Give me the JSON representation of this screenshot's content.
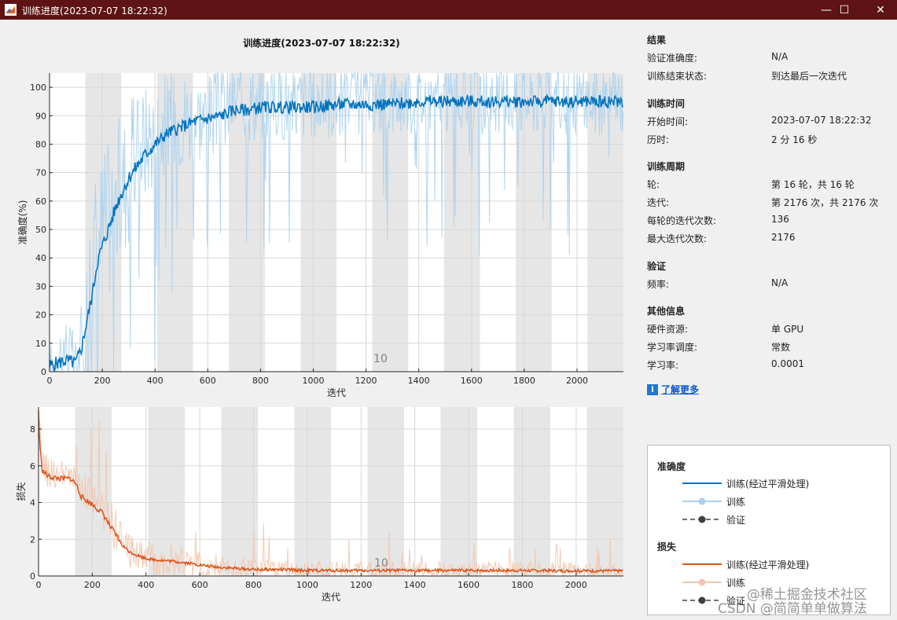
{
  "window": {
    "title": "训练进度(2023-07-07 18:22:32)",
    "app_icon": "matlab-icon",
    "controls": {
      "minimize": "—",
      "maximize": "☐",
      "close": "✕"
    }
  },
  "colors": {
    "titlebar": "#5e1414",
    "accuracy_smoothed": "#0072bd",
    "accuracy_raw": "#abd1ee",
    "loss_smoothed": "#d95319",
    "loss_raw": "#f3c5ad",
    "epoch_shade": "#e6e6e6",
    "validation": "#404040"
  },
  "chart_data": [
    {
      "type": "line",
      "title": "训练进度(2023-07-07 18:22:32)",
      "xlabel": "迭代",
      "ylabel": "准确度(%)",
      "xlim": [
        0,
        2176
      ],
      "ylim": [
        0,
        105
      ],
      "xticks": [
        0,
        200,
        400,
        600,
        800,
        1000,
        1200,
        1400,
        1600,
        1800,
        2000
      ],
      "yticks": [
        0,
        10,
        20,
        30,
        40,
        50,
        60,
        70,
        80,
        90,
        100
      ],
      "grid": true,
      "epoch_label": "10",
      "epoch_label_x": 1255,
      "iterations_per_epoch": 136,
      "series": [
        {
          "name": "训练(经过平滑处理)",
          "style": "smoothed",
          "x": [
            0,
            60,
            100,
            120,
            140,
            160,
            180,
            200,
            230,
            260,
            300,
            330,
            360,
            400,
            450,
            500,
            550,
            600,
            650,
            700,
            750,
            800,
            850,
            900,
            950,
            1000,
            1100,
            1200,
            1300,
            1400,
            1500,
            1600,
            1700,
            1800,
            1900,
            2000,
            2100,
            2176
          ],
          "y": [
            2,
            4,
            3,
            8,
            17,
            26,
            38,
            44,
            52,
            60,
            68,
            72,
            76,
            80,
            84,
            86,
            88,
            89,
            90,
            92,
            92,
            93,
            93,
            93,
            93,
            93,
            94,
            94,
            94,
            95,
            95,
            95,
            95,
            95,
            95,
            95,
            95,
            95
          ]
        },
        {
          "name": "训练",
          "style": "raw",
          "x": [
            0,
            60,
            100,
            130,
            160,
            200,
            250,
            300,
            350,
            400,
            500,
            600,
            700,
            800,
            900,
            1000,
            1200,
            1400,
            1600,
            1800,
            2000,
            2176
          ],
          "y": [
            0,
            10,
            2,
            10,
            40,
            50,
            60,
            70,
            80,
            85,
            90,
            90,
            95,
            95,
            95,
            95,
            96,
            96,
            96,
            96,
            96,
            96
          ],
          "spread": [
            10,
            12,
            10,
            20,
            30,
            30,
            28,
            25,
            22,
            20,
            18,
            16,
            15,
            14,
            14,
            14,
            13,
            13,
            13,
            13,
            13,
            13
          ]
        }
      ]
    },
    {
      "type": "line",
      "xlabel": "迭代",
      "ylabel": "损失",
      "xlim": [
        0,
        2176
      ],
      "ylim": [
        0,
        9.2
      ],
      "xticks": [
        0,
        200,
        400,
        600,
        800,
        1000,
        1200,
        1400,
        1600,
        1800,
        2000
      ],
      "yticks": [
        0,
        2,
        4,
        6,
        8
      ],
      "grid": true,
      "epoch_label": "10",
      "epoch_label_x": 1275,
      "iterations_per_epoch": 136,
      "series": [
        {
          "name": "训练(经过平滑处理)",
          "style": "smoothed",
          "x": [
            0,
            5,
            15,
            40,
            80,
            120,
            140,
            160,
            200,
            240,
            270,
            290,
            310,
            340,
            380,
            420,
            460,
            500,
            560,
            600,
            650,
            700,
            800,
            900,
            1000,
            1200,
            1400,
            1600,
            1800,
            2000,
            2176
          ],
          "y": [
            9,
            7,
            5.7,
            5.4,
            5.3,
            5.3,
            5.0,
            4.3,
            3.9,
            3.4,
            2.6,
            2.2,
            1.7,
            1.3,
            1.05,
            0.9,
            0.85,
            0.8,
            0.7,
            0.6,
            0.5,
            0.45,
            0.35,
            0.35,
            0.3,
            0.3,
            0.3,
            0.3,
            0.3,
            0.28,
            0.28
          ]
        },
        {
          "name": "训练",
          "style": "raw",
          "x": [
            0,
            20,
            80,
            140,
            200,
            260,
            320,
            400,
            500,
            600,
            800,
            1000,
            1200,
            1400,
            1600,
            1800,
            2000,
            2176
          ],
          "y": [
            8,
            5.8,
            5.5,
            5.2,
            4.2,
            3.2,
            1.6,
            1.0,
            0.8,
            0.6,
            0.35,
            0.3,
            0.3,
            0.3,
            0.3,
            0.3,
            0.28,
            0.28
          ],
          "spread": [
            1.0,
            1.0,
            0.8,
            0.8,
            1.0,
            1.2,
            1.1,
            1.0,
            0.9,
            0.8,
            0.6,
            0.5,
            0.5,
            0.5,
            0.5,
            0.5,
            0.5,
            0.5
          ]
        }
      ]
    }
  ],
  "info": {
    "sections": [
      {
        "title": "结果",
        "rows": [
          {
            "label": "验证准确度:",
            "value": "N/A"
          },
          {
            "label": "训练结束状态:",
            "value": "到达最后一次迭代"
          }
        ]
      },
      {
        "title": "训练时间",
        "rows": [
          {
            "label": "开始时间:",
            "value": "2023-07-07 18:22:32"
          },
          {
            "label": "历时:",
            "value": "2 分 16 秒"
          }
        ]
      },
      {
        "title": "训练周期",
        "rows": [
          {
            "label": "轮:",
            "value": "第 16 轮，共 16 轮"
          },
          {
            "label": "迭代:",
            "value": "第 2176 次，共 2176 次"
          },
          {
            "label": "每轮的迭代次数:",
            "value": "136"
          },
          {
            "label": "最大迭代次数:",
            "value": "2176"
          }
        ]
      },
      {
        "title": "验证",
        "rows": [
          {
            "label": "频率:",
            "value": "N/A"
          }
        ]
      },
      {
        "title": "其他信息",
        "rows": [
          {
            "label": "硬件资源:",
            "value": "单 GPU"
          },
          {
            "label": "学习率调度:",
            "value": "常数"
          },
          {
            "label": "学习率:",
            "value": "0.0001"
          }
        ]
      }
    ],
    "learn_more": {
      "icon": "info-icon",
      "label": "了解更多"
    }
  },
  "legend": {
    "accuracy": {
      "title": "准确度",
      "items": [
        {
          "label": "训练(经过平滑处理)",
          "kind": "smoothed"
        },
        {
          "label": "训练",
          "kind": "raw"
        },
        {
          "label": "验证",
          "kind": "validation"
        }
      ]
    },
    "loss": {
      "title": "损失",
      "items": [
        {
          "label": "训练(经过平滑处理)",
          "kind": "smoothed"
        },
        {
          "label": "训练",
          "kind": "raw"
        },
        {
          "label": "验证",
          "kind": "validation"
        }
      ]
    }
  },
  "watermark": {
    "line1": "@稀土掘金技术社区",
    "line2": "CSDN @简简单单做算法"
  }
}
